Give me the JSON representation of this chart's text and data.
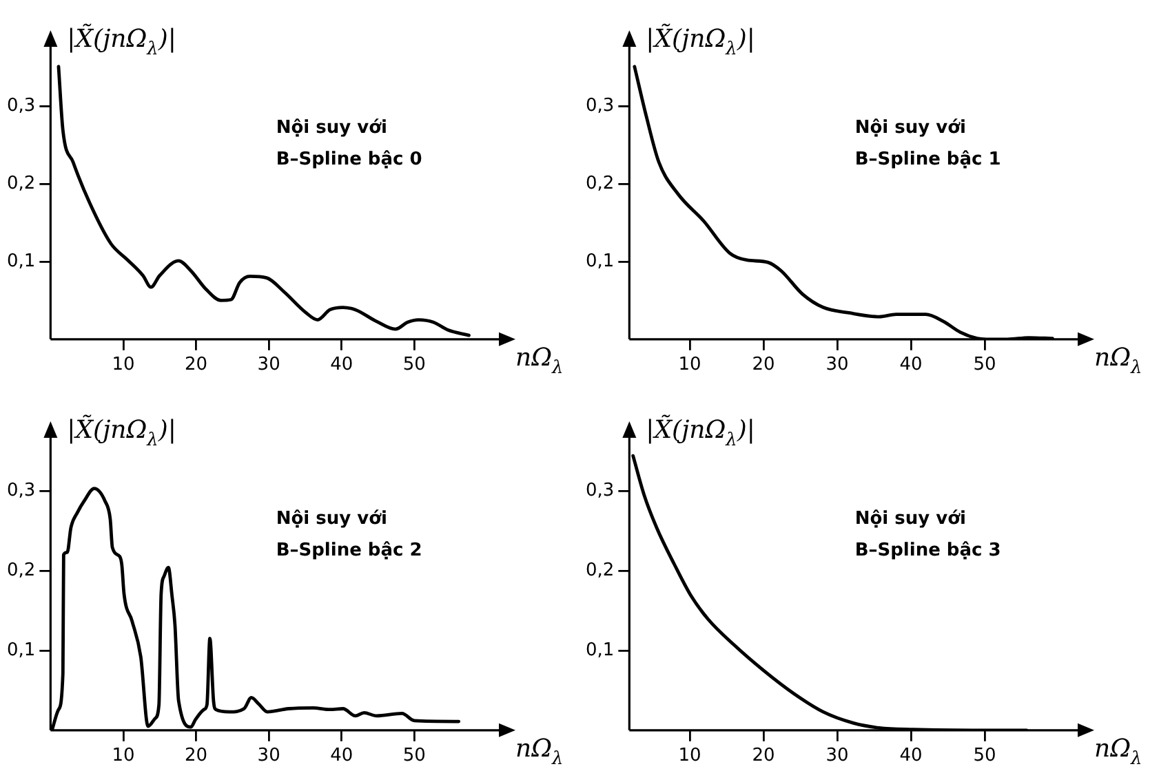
{
  "chart_data": [
    {
      "type": "line",
      "xlabel": "nΩ$_{λ}$",
      "ylabel": "|X̃(jnΩ$_{λ}$)|",
      "annotations": [
        "Nội suy với\nB–Spline bậc 0"
      ],
      "color": "#000000",
      "marker": "none",
      "line_style": "solid",
      "grid": false,
      "legend": false,
      "xlim": [
        0,
        62
      ],
      "ylim": [
        0,
        0.38
      ],
      "xticks": [
        10,
        20,
        30,
        40,
        50
      ],
      "yticks": [
        {
          "value": 0.1,
          "label": "0,1"
        },
        {
          "value": 0.2,
          "label": "0,2"
        },
        {
          "value": 0.3,
          "label": "0,3"
        }
      ],
      "x": [
        1.1,
        1.7,
        3.1,
        5.4,
        8.3,
        10.6,
        12.7,
        13.8,
        15.0,
        17.6,
        19.3,
        21.4,
        23.4,
        24.8,
        26.0,
        27.4,
        29.7,
        32.1,
        35.0,
        36.7,
        38.4,
        40.2,
        41.9,
        44.8,
        47.4,
        49.1,
        50.6,
        52.6,
        54.6,
        57.5
      ],
      "values": [
        0.351,
        0.269,
        0.228,
        0.175,
        0.123,
        0.102,
        0.082,
        0.067,
        0.082,
        0.101,
        0.088,
        0.064,
        0.05,
        0.051,
        0.073,
        0.081,
        0.079,
        0.061,
        0.035,
        0.025,
        0.038,
        0.041,
        0.038,
        0.023,
        0.013,
        0.022,
        0.025,
        0.022,
        0.012,
        0.005
      ]
    },
    {
      "type": "line",
      "xlabel": "nΩ$_{λ}$",
      "ylabel": "|X̃(jnΩ$_{λ}$)|",
      "annotations": [
        "Nội suy với\nB–Spline bậc 1"
      ],
      "color": "#000000",
      "marker": "none",
      "line_style": "solid",
      "grid": false,
      "legend": false,
      "xlim": [
        1.8,
        63
      ],
      "ylim": [
        0,
        0.38
      ],
      "xticks": [
        10,
        20,
        30,
        40,
        50
      ],
      "yticks": [
        {
          "value": 0.1,
          "label": "0,1"
        },
        {
          "value": 0.2,
          "label": "0,2"
        },
        {
          "value": 0.3,
          "label": "0,3"
        }
      ],
      "x": [
        2.5,
        4.1,
        5.8,
        8.4,
        11.9,
        15.4,
        17.7,
        20.6,
        22.4,
        25.3,
        28.1,
        31.6,
        35.7,
        38.0,
        42.0,
        44.4,
        46.7,
        49.0,
        50.2,
        53.1,
        56.0,
        59.2
      ],
      "values": [
        0.351,
        0.287,
        0.228,
        0.187,
        0.152,
        0.111,
        0.102,
        0.099,
        0.088,
        0.058,
        0.041,
        0.034,
        0.029,
        0.032,
        0.032,
        0.023,
        0.009,
        0.001,
        0,
        0,
        0.002,
        0.001
      ]
    },
    {
      "type": "line",
      "xlabel": "nΩ$_{λ}$",
      "ylabel": "|X̃(jnΩ$_{λ}$)|",
      "annotations": [
        "Nội suy với\nB–Spline bậc 2"
      ],
      "color": "#000000",
      "marker": "none",
      "line_style": "solid",
      "grid": false,
      "legend": false,
      "xlim": [
        0,
        62
      ],
      "ylim": [
        0,
        0.37
      ],
      "xticks": [
        10,
        20,
        30,
        40,
        50
      ],
      "yticks": [
        {
          "value": 0.1,
          "label": "0,1"
        },
        {
          "value": 0.2,
          "label": "0,2"
        },
        {
          "value": 0.3,
          "label": "0,3"
        }
      ],
      "x": [
        0.2,
        1.1,
        1.7,
        1.8,
        2.3,
        2.8,
        3.7,
        4.6,
        6.0,
        7.5,
        8.2,
        8.5,
        9.5,
        9.8,
        10.1,
        11.2,
        12.4,
        13.4,
        14.4,
        14.9,
        15.2,
        15.6,
        16.2,
        16.7,
        17.1,
        17.6,
        19.3,
        19.9,
        21.1,
        21.5,
        21.9,
        22.4,
        22.7,
        24.6,
        26.6,
        27.6,
        28.6,
        29.8,
        32.7,
        36.1,
        38.4,
        40.2,
        41.9,
        43.1,
        44.8,
        48.3,
        50.0,
        56.1
      ],
      "values": [
        0,
        0.026,
        0.071,
        0.22,
        0.223,
        0.254,
        0.273,
        0.287,
        0.303,
        0.287,
        0.265,
        0.229,
        0.218,
        0.207,
        0.171,
        0.137,
        0.092,
        0.005,
        0.015,
        0.032,
        0.171,
        0.193,
        0.204,
        0.168,
        0.132,
        0.037,
        0.004,
        0.013,
        0.026,
        0.032,
        0.115,
        0.037,
        0.026,
        0.023,
        0.027,
        0.041,
        0.033,
        0.023,
        0.027,
        0.028,
        0.026,
        0.027,
        0.018,
        0.022,
        0.018,
        0.021,
        0.012,
        0.011
      ]
    },
    {
      "type": "line",
      "xlabel": "nΩ$_{λ}$",
      "ylabel": "|X̃(jnΩ$_{λ}$)|",
      "annotations": [
        "Nội suy với\nB–Spline bậc 3"
      ],
      "color": "#000000",
      "marker": "none",
      "line_style": "solid",
      "grid": false,
      "legend": false,
      "xlim": [
        1.8,
        63
      ],
      "ylim": [
        0,
        0.37
      ],
      "xticks": [
        10,
        20,
        30,
        40,
        50
      ],
      "yticks": [
        {
          "value": 0.1,
          "label": "0,1"
        },
        {
          "value": 0.2,
          "label": "0,2"
        },
        {
          "value": 0.3,
          "label": "0,3"
        }
      ],
      "x": [
        2.3,
        3.8,
        5.5,
        7.9,
        10.2,
        12.5,
        16.0,
        20.0,
        24.1,
        28.1,
        32.2,
        35.7,
        40.3,
        49.6,
        55.7
      ],
      "values": [
        0.344,
        0.295,
        0.254,
        0.208,
        0.168,
        0.139,
        0.107,
        0.075,
        0.046,
        0.023,
        0.009,
        0.003,
        0.001,
        0,
        0
      ]
    }
  ]
}
